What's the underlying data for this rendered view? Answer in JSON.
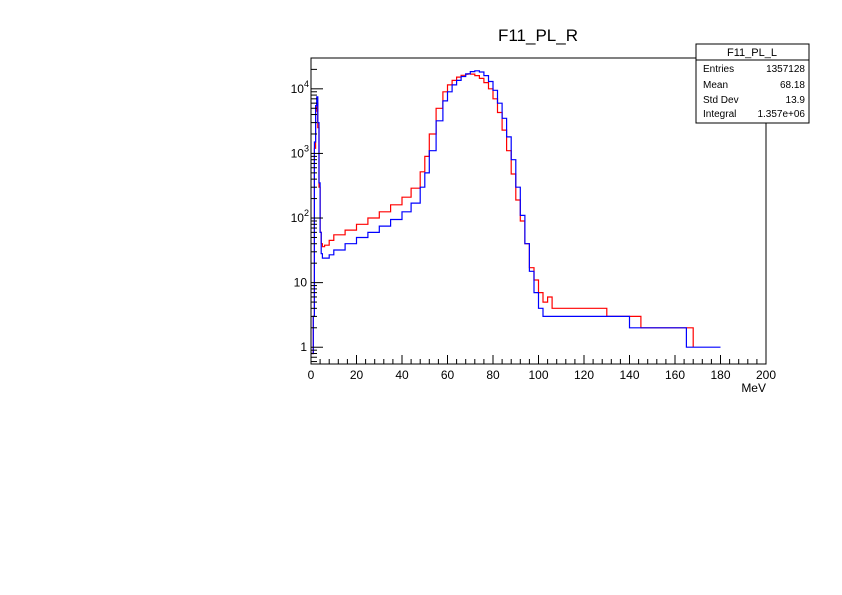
{
  "chart_data": {
    "type": "line",
    "title": "F11_PL_R",
    "xlabel": "MeV",
    "ylabel": "",
    "xlim": [
      0,
      200
    ],
    "ylim": [
      0.55,
      30000
    ],
    "yscale": "log",
    "x_ticks": [
      "0",
      "20",
      "40",
      "60",
      "80",
      "100",
      "120",
      "140",
      "160",
      "180",
      "200"
    ],
    "y_ticks": [
      {
        "value": 1,
        "label": "1",
        "sup": ""
      },
      {
        "value": 10,
        "label": "10",
        "sup": ""
      },
      {
        "value": 100,
        "label": "10",
        "sup": "2"
      },
      {
        "value": 1000,
        "label": "10",
        "sup": "3"
      },
      {
        "value": 10000,
        "label": "10",
        "sup": "4"
      }
    ],
    "series": [
      {
        "name": "F11_PL_R",
        "color": "#ff0000",
        "x": [
          0.2,
          1.0,
          1.5,
          2.0,
          2.5,
          3.0,
          3.5,
          4.0,
          4.5,
          5.0,
          6,
          8,
          10,
          15,
          20,
          25,
          30,
          35,
          40,
          44,
          48,
          50,
          52,
          55,
          58,
          60,
          62,
          64,
          66,
          68,
          69,
          70,
          72,
          74,
          76,
          78,
          80,
          82,
          84,
          86,
          88,
          90,
          92,
          94,
          96,
          98,
          100,
          102,
          104,
          106,
          110,
          115,
          120,
          125,
          130,
          135,
          140,
          145,
          150,
          155,
          160,
          165,
          168
        ],
        "values": [
          0.8,
          3,
          1200,
          4500,
          6000,
          2500,
          300,
          60,
          40,
          36,
          38,
          45,
          55,
          65,
          80,
          100,
          125,
          160,
          210,
          290,
          520,
          900,
          2000,
          5000,
          9000,
          11500,
          13500,
          15200,
          16200,
          16800,
          17000,
          16900,
          16000,
          14500,
          12500,
          10000,
          7000,
          4300,
          2300,
          1100,
          480,
          190,
          90,
          40,
          17,
          11,
          7,
          5,
          6,
          4,
          4,
          4,
          4,
          4,
          3,
          3,
          3,
          2,
          2,
          2,
          2,
          2,
          1
        ]
      },
      {
        "name": "F11_PL_L",
        "color": "#0000ff",
        "x": [
          0.2,
          1.0,
          1.5,
          2.0,
          2.5,
          3.0,
          3.5,
          4.0,
          4.5,
          5.0,
          6,
          8,
          10,
          15,
          20,
          25,
          30,
          35,
          40,
          44,
          48,
          50,
          52,
          55,
          58,
          60,
          62,
          64,
          66,
          68,
          70,
          72,
          74,
          76,
          78,
          80,
          82,
          84,
          86,
          88,
          90,
          92,
          94,
          96,
          98,
          100,
          102,
          104,
          106,
          110,
          115,
          120,
          125,
          130,
          135,
          140,
          145,
          150,
          155,
          160,
          165,
          170,
          175,
          180
        ],
        "values": [
          0.8,
          3,
          1500,
          5500,
          7500,
          3000,
          350,
          60,
          28,
          24,
          24,
          27,
          32,
          40,
          50,
          60,
          75,
          95,
          125,
          170,
          300,
          500,
          1100,
          3200,
          6500,
          9000,
          11500,
          13500,
          15500,
          17000,
          18500,
          19000,
          18200,
          16000,
          13000,
          9500,
          6000,
          3500,
          1800,
          800,
          300,
          110,
          40,
          15,
          7,
          4,
          3,
          3,
          3,
          3,
          3,
          3,
          3,
          3,
          3,
          2,
          2,
          2,
          2,
          2,
          1,
          1,
          1,
          1
        ]
      }
    ],
    "stats_box": {
      "title": "F11_PL_L",
      "rows": [
        {
          "label": "Entries",
          "value": "1357128"
        },
        {
          "label": "Mean",
          "value": "68.18"
        },
        {
          "label": "Std Dev",
          "value": "13.9"
        },
        {
          "label": "Integral",
          "value": "1.357e+06"
        }
      ]
    }
  }
}
